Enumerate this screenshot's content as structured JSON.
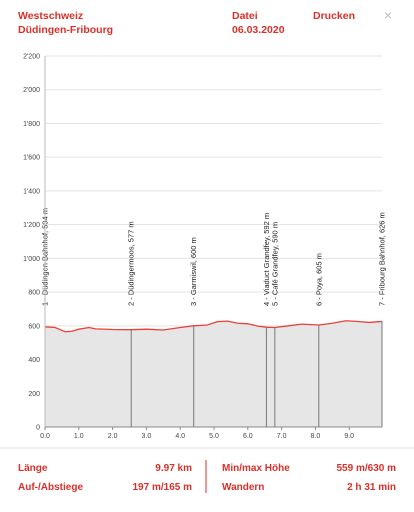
{
  "header": {
    "region": "Westschweiz",
    "route": "Düdingen-Fribourg",
    "file_label": "Datei",
    "date": "06.03.2020",
    "print": "Drucken",
    "close": "×"
  },
  "chart_data": {
    "type": "line",
    "x": [
      0,
      0.3,
      0.6,
      0.8,
      1.0,
      1.3,
      1.5,
      2.0,
      2.55,
      3.0,
      3.5,
      4.0,
      4.4,
      4.8,
      5.1,
      5.4,
      5.7,
      6.0,
      6.3,
      6.55,
      6.8,
      7.2,
      7.6,
      8.1,
      8.5,
      8.9,
      9.3,
      9.6,
      9.97
    ],
    "series": [
      {
        "color": "#e8413a",
        "values": [
          594,
          590,
          565,
          568,
          580,
          590,
          582,
          578,
          577,
          580,
          575,
          590,
          600,
          605,
          625,
          628,
          615,
          612,
          598,
          592,
          590,
          600,
          610,
          605,
          615,
          630,
          625,
          620,
          626
        ]
      }
    ],
    "xlim": [
      0,
      9.97
    ],
    "ylim": [
      0,
      2200
    ],
    "xticks": [
      {
        "value": 0,
        "label": "0.0"
      },
      {
        "value": 1,
        "label": "1.0"
      },
      {
        "value": 2,
        "label": "2.0"
      },
      {
        "value": 3,
        "label": "3.0"
      },
      {
        "value": 4,
        "label": "4.0"
      },
      {
        "value": 5,
        "label": "5.0"
      },
      {
        "value": 6,
        "label": "6.0"
      },
      {
        "value": 7,
        "label": "7.0"
      },
      {
        "value": 8,
        "label": "8.0"
      },
      {
        "value": 9,
        "label": "9.0"
      }
    ],
    "yticks": [
      0,
      200,
      400,
      600,
      800,
      {
        "value": 1000,
        "label": "1'000"
      },
      {
        "value": 1200,
        "label": "1'200"
      },
      {
        "value": 1400,
        "label": "1'400"
      },
      {
        "value": 1600,
        "label": "1'600"
      },
      {
        "value": 1800,
        "label": "1'800"
      },
      {
        "value": 2000,
        "label": "2'000"
      },
      {
        "value": 2200,
        "label": "2'200"
      }
    ],
    "grid": true,
    "waypoints": [
      {
        "x": 0,
        "elevation": 594,
        "label": "1 - Düdingen Bahnhof, 594 m"
      },
      {
        "x": 2.55,
        "elevation": 577,
        "label": "2 - Düdingermoos, 577 m"
      },
      {
        "x": 4.4,
        "elevation": 600,
        "label": "3 - Garmiswil, 600 m"
      },
      {
        "x": 6.55,
        "elevation": 592,
        "label": "4 - Viaduct Grandfey, 592 m"
      },
      {
        "x": 6.8,
        "elevation": 590,
        "label": "5 - Café Grandfey, 590 m"
      },
      {
        "x": 8.1,
        "elevation": 605,
        "label": "6 - Poya, 605 m"
      },
      {
        "x": 9.97,
        "elevation": 626,
        "label": "7 - Fribourg Bahnhof, 626 m"
      }
    ]
  },
  "stats": {
    "length_label": "Länge",
    "length": "9.97 km",
    "ascent_label": "Auf-/Abstiege",
    "ascent": "197 m/165 m",
    "minmax_label": "Min/max Höhe",
    "minmax": "559 m/630 m",
    "hike_label": "Wandern",
    "hike": "2 h 31 min"
  }
}
